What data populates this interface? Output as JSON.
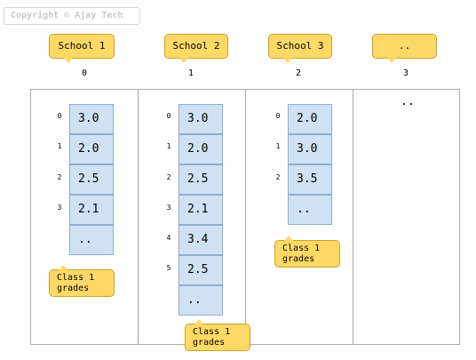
{
  "watermark": "Copyright © Ajay Tech",
  "outer_array": {
    "labels": [
      "School 1",
      "School 2",
      "School 3",
      ".."
    ],
    "indices": [
      "0",
      "1",
      "2",
      "3"
    ]
  },
  "schools": [
    {
      "row_indices": [
        "0",
        "1",
        "2",
        "3"
      ],
      "cells": [
        "3.0",
        "2.0",
        "2.5",
        "2.1",
        ".."
      ],
      "caption": "Class 1\ngrades"
    },
    {
      "row_indices": [
        "0",
        "1",
        "2",
        "3",
        "4",
        "5"
      ],
      "cells": [
        "3.0",
        "2.0",
        "2.5",
        "2.1",
        "3.4",
        "2.5",
        ".."
      ],
      "caption": "Class 1\ngrades"
    },
    {
      "row_indices": [
        "0",
        "1",
        "2"
      ],
      "cells": [
        "2.0",
        "3.0",
        "3.5",
        ".."
      ],
      "caption": "Class 1\ngrades"
    }
  ],
  "fourth_column_text": ".."
}
